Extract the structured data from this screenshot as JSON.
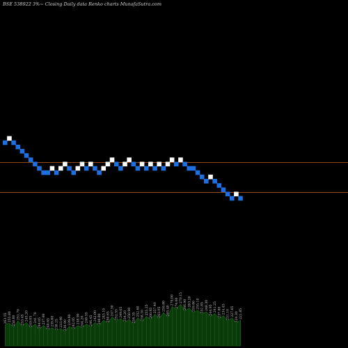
{
  "header": {
    "text": "BSE 538922  3%~  Closing Daily data  Renko  charts MunafaSutra.com"
  },
  "chart_data": {
    "type": "renko",
    "title": "BSE 538922  3%~  Closing Daily data  Renko  charts MunafaSutra.com",
    "colors": {
      "up_brick": "#ffffff",
      "down_brick": "#1e6fe0",
      "reference_line": "#c8641e",
      "volume_fill": "#0a3a0a",
      "volume_stroke": "#1d6a1d",
      "volume_label": "#c8c8c8",
      "background": "#000000"
    },
    "grid": false,
    "reference_lines": [
      1.0,
      0.82
    ],
    "bricks": [
      {
        "level": 0,
        "dir": "down"
      },
      {
        "level": 1,
        "dir": "up"
      },
      {
        "level": 0,
        "dir": "down"
      },
      {
        "level": -1,
        "dir": "down"
      },
      {
        "level": -2,
        "dir": "down"
      },
      {
        "level": -3,
        "dir": "down"
      },
      {
        "level": -4,
        "dir": "down"
      },
      {
        "level": -5,
        "dir": "down"
      },
      {
        "level": -6,
        "dir": "down"
      },
      {
        "level": -7,
        "dir": "down"
      },
      {
        "level": -7,
        "dir": "down"
      },
      {
        "level": -6,
        "dir": "up"
      },
      {
        "level": -7,
        "dir": "down"
      },
      {
        "level": -6,
        "dir": "up"
      },
      {
        "level": -5,
        "dir": "up"
      },
      {
        "level": -6,
        "dir": "down"
      },
      {
        "level": -7,
        "dir": "down"
      },
      {
        "level": -6,
        "dir": "up"
      },
      {
        "level": -5,
        "dir": "up"
      },
      {
        "level": -6,
        "dir": "down"
      },
      {
        "level": -5,
        "dir": "up"
      },
      {
        "level": -6,
        "dir": "down"
      },
      {
        "level": -7,
        "dir": "down"
      },
      {
        "level": -6,
        "dir": "up"
      },
      {
        "level": -5,
        "dir": "up"
      },
      {
        "level": -4,
        "dir": "up"
      },
      {
        "level": -5,
        "dir": "down"
      },
      {
        "level": -6,
        "dir": "down"
      },
      {
        "level": -5,
        "dir": "up"
      },
      {
        "level": -4,
        "dir": "up"
      },
      {
        "level": -5,
        "dir": "down"
      },
      {
        "level": -6,
        "dir": "down"
      },
      {
        "level": -5,
        "dir": "up"
      },
      {
        "level": -6,
        "dir": "down"
      },
      {
        "level": -5,
        "dir": "up"
      },
      {
        "level": -6,
        "dir": "down"
      },
      {
        "level": -5,
        "dir": "up"
      },
      {
        "level": -6,
        "dir": "down"
      },
      {
        "level": -5,
        "dir": "up"
      },
      {
        "level": -4,
        "dir": "up"
      },
      {
        "level": -5,
        "dir": "down"
      },
      {
        "level": -4,
        "dir": "up"
      },
      {
        "level": -5,
        "dir": "down"
      },
      {
        "level": -6,
        "dir": "down"
      },
      {
        "level": -6,
        "dir": "down"
      },
      {
        "level": -7,
        "dir": "down"
      },
      {
        "level": -8,
        "dir": "down"
      },
      {
        "level": -9,
        "dir": "down"
      },
      {
        "level": -8,
        "dir": "up"
      },
      {
        "level": -9,
        "dir": "down"
      },
      {
        "level": -10,
        "dir": "down"
      },
      {
        "level": -11,
        "dir": "down"
      },
      {
        "level": -12,
        "dir": "down"
      },
      {
        "level": -13,
        "dir": "down"
      },
      {
        "level": -12,
        "dir": "up"
      },
      {
        "level": -13,
        "dir": "down"
      }
    ],
    "volume": {
      "values": [
        28,
        30,
        25,
        33,
        26,
        31,
        24,
        29,
        22,
        27,
        21,
        24,
        20,
        23,
        19,
        26,
        22,
        27,
        24,
        29,
        25,
        31,
        27,
        34,
        30,
        38,
        33,
        36,
        31,
        35,
        29,
        37,
        32,
        39,
        35,
        42,
        36,
        44,
        38,
        52,
        48,
        55,
        46,
        50,
        44,
        47,
        42,
        45,
        39,
        43,
        36,
        40,
        33,
        37,
        30,
        34
      ],
      "labels": [
        "263.55",
        "255.80",
        "258.80",
        "251.70",
        "253.45",
        "245.20",
        "249.05",
        "241.70",
        "244.05",
        "237.80",
        "240.65",
        "235.60",
        "238.25",
        "233.40",
        "236.90",
        "239.60",
        "242.05",
        "238.90",
        "244.20",
        "240.55",
        "246.45",
        "242.00",
        "248.80",
        "245.10",
        "250.65",
        "247.30",
        "252.55",
        "249.05",
        "254.20",
        "250.90",
        "256.35",
        "252.60",
        "258.10",
        "255.25",
        "260.95",
        "257.40",
        "263.05",
        "259.80",
        "265.40",
        "279.00",
        "274.60",
        "270.15",
        "266.90",
        "263.20",
        "259.60",
        "255.10",
        "251.85",
        "248.30",
        "244.95",
        "241.25",
        "237.80",
        "234.45",
        "231.10",
        "227.65",
        "224.30",
        "221.85"
      ]
    }
  }
}
